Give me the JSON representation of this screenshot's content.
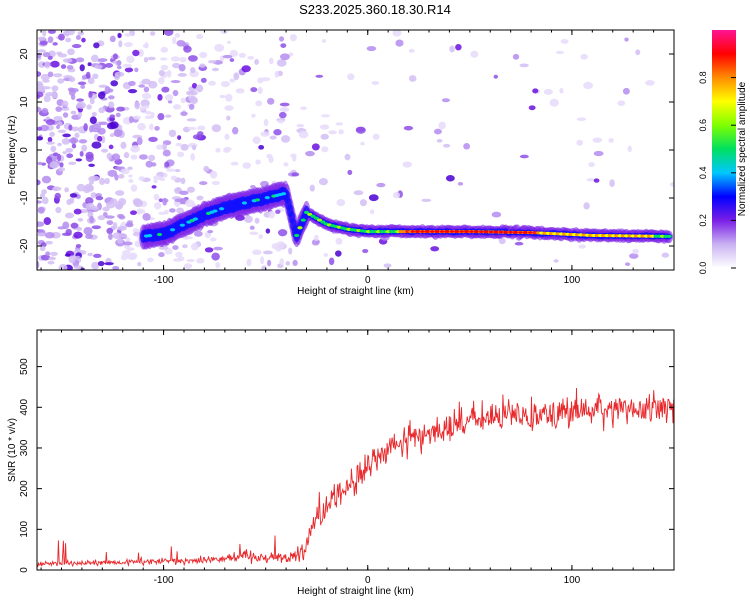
{
  "title": "S233.2025.360.18.30.R14",
  "chart_data": [
    {
      "type": "heatmap",
      "xlabel": "Height of straight line (km)",
      "ylabel": "Frequency (Hz)",
      "xlim": [
        -162,
        150
      ],
      "ylim": [
        -25,
        25
      ],
      "xticks": [
        -100,
        0,
        100
      ],
      "yticks": [
        20,
        10,
        0,
        -10,
        -20
      ],
      "colorbar": {
        "label": "Normalized spectral amplitude",
        "ticks": [
          "0.0",
          "0.2",
          "0.4",
          "0.6",
          "0.8"
        ],
        "range": [
          0,
          1
        ],
        "colors": [
          "#ffffff",
          "#c9b1f2",
          "#7a1fe6",
          "#0000ff",
          "#00c8ff",
          "#00e060",
          "#7fff00",
          "#ffff00",
          "#ff8c00",
          "#ff0000",
          "#ff1493"
        ]
      },
      "signal_track": {
        "x": [
          -110,
          -100,
          -90,
          -80,
          -70,
          -60,
          -50,
          -40,
          -35,
          -30,
          -20,
          -10,
          0,
          20,
          50,
          80,
          110,
          148
        ],
        "y": [
          -18,
          -17.5,
          -15.5,
          -13.5,
          -12,
          -11,
          -10,
          -9,
          -18,
          -13,
          -15.5,
          -16.5,
          -17,
          -17,
          -17,
          -17.2,
          -17.8,
          -18
        ]
      },
      "grid": false
    },
    {
      "type": "line",
      "xlabel": "Height of straight line (km)",
      "ylabel": "SNR (10 * v/v)",
      "xlim": [
        -162,
        150
      ],
      "ylim": [
        0,
        590
      ],
      "xticks": [
        -100,
        0,
        100
      ],
      "yticks": [
        0,
        100,
        200,
        300,
        400,
        500
      ],
      "color": "#e8282b",
      "series_trend": {
        "x": [
          -162,
          -120,
          -80,
          -60,
          -40,
          -32,
          -25,
          -15,
          -5,
          5,
          15,
          25,
          40,
          60,
          80,
          100,
          120,
          150
        ],
        "y": [
          15,
          18,
          25,
          35,
          30,
          45,
          130,
          190,
          220,
          280,
          310,
          330,
          355,
          375,
          385,
          390,
          395,
          400
        ]
      },
      "grid": false
    }
  ]
}
